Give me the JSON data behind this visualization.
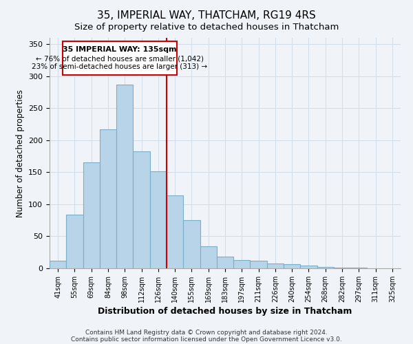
{
  "title": "35, IMPERIAL WAY, THATCHAM, RG19 4RS",
  "subtitle": "Size of property relative to detached houses in Thatcham",
  "xlabel": "Distribution of detached houses by size in Thatcham",
  "ylabel": "Number of detached properties",
  "bar_labels": [
    "41sqm",
    "55sqm",
    "69sqm",
    "84sqm",
    "98sqm",
    "112sqm",
    "126sqm",
    "140sqm",
    "155sqm",
    "169sqm",
    "183sqm",
    "197sqm",
    "211sqm",
    "226sqm",
    "240sqm",
    "254sqm",
    "268sqm",
    "282sqm",
    "297sqm",
    "311sqm",
    "325sqm"
  ],
  "bar_values": [
    12,
    84,
    165,
    217,
    287,
    183,
    151,
    114,
    75,
    34,
    18,
    13,
    12,
    8,
    6,
    4,
    2,
    1,
    1,
    0.5,
    0.5
  ],
  "bar_color": "#b8d4e8",
  "bar_edge_color": "#7aaec8",
  "vline_color": "#cc0000",
  "annotation_title": "35 IMPERIAL WAY: 135sqm",
  "annotation_line1": "← 76% of detached houses are smaller (1,042)",
  "annotation_line2": "23% of semi-detached houses are larger (313) →",
  "annotation_box_color": "#ffffff",
  "annotation_box_edge": "#cc0000",
  "footer1": "Contains HM Land Registry data © Crown copyright and database right 2024.",
  "footer2": "Contains public sector information licensed under the Open Government Licence v3.0.",
  "yticks": [
    0,
    50,
    100,
    150,
    200,
    250,
    300,
    350
  ],
  "ylim": [
    0,
    360
  ],
  "background_color": "#f0f4f8",
  "grid_color": "#d0dce8",
  "title_fontsize": 11,
  "subtitle_fontsize": 9.5,
  "xlabel_fontsize": 9,
  "ylabel_fontsize": 8.5
}
